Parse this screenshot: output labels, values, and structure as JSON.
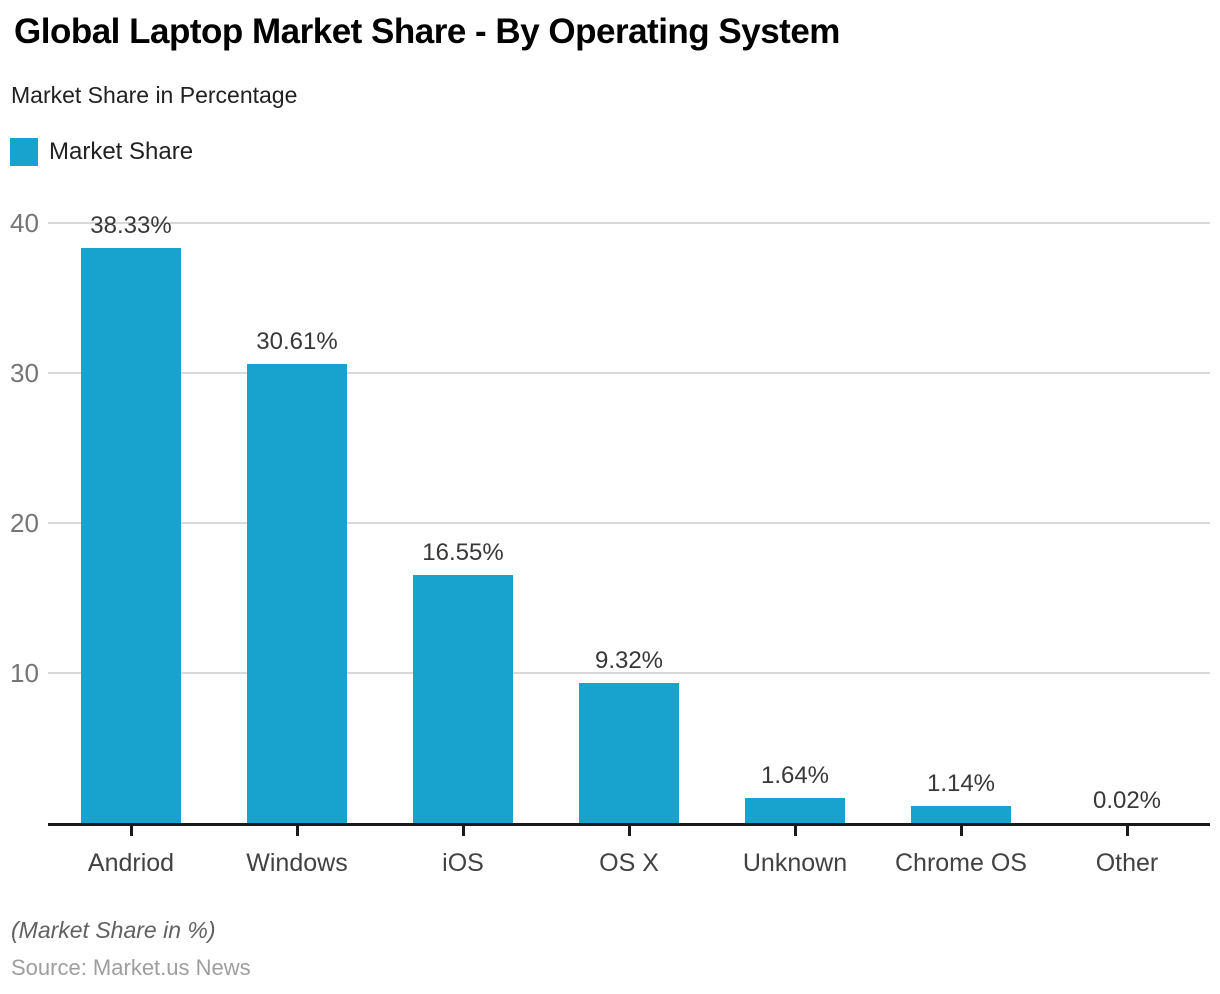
{
  "header": {
    "title": "Global Laptop Market Share - By Operating System",
    "subtitle": "Market Share in Percentage"
  },
  "legend": {
    "label": "Market Share"
  },
  "chart_data": {
    "type": "bar",
    "title": "Global Laptop Market Share - By Operating System",
    "subtitle": "Market Share in Percentage",
    "series_name": "Market Share",
    "categories": [
      "Andriod",
      "Windows",
      "iOS",
      "OS X",
      "Unknown",
      "Chrome OS",
      "Other"
    ],
    "values": [
      38.33,
      30.61,
      16.55,
      9.32,
      1.64,
      1.14,
      0.02
    ],
    "value_labels": [
      "38.33%",
      "30.61%",
      "16.55%",
      "9.32%",
      "1.64%",
      "1.14%",
      "0.02%"
    ],
    "ylabel": "Market Share in %",
    "ylim": [
      0,
      41.5
    ],
    "yticks": [
      10,
      20,
      30,
      40
    ],
    "grid": "horizontal",
    "legend_position": "top-left",
    "bar_color": "#18a3ce",
    "gridline_color": "#d9d9d9",
    "axis_color": "#1a1a1a"
  },
  "footer": {
    "note": "(Market Share in %)",
    "source": "Source: Market.us News"
  }
}
